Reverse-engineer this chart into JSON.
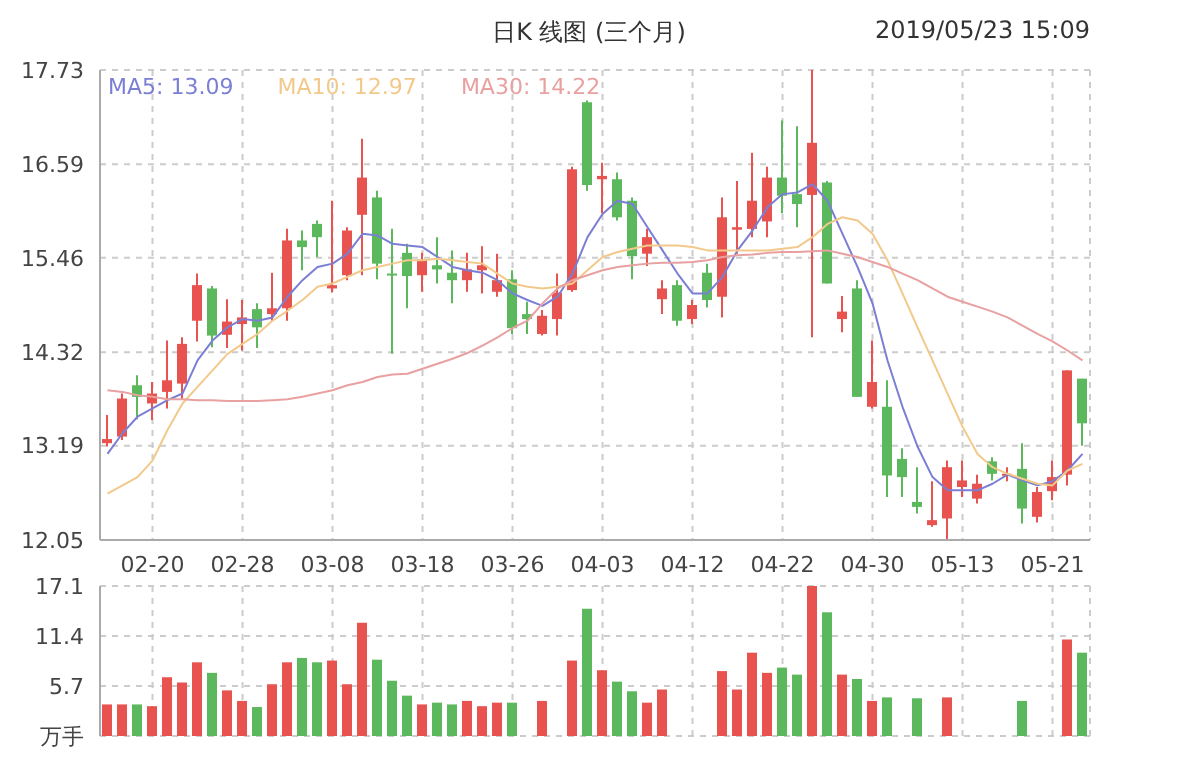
{
  "chart_data": [
    {
      "type": "candlestick",
      "title": "日K 线图 (三个月)",
      "annotations": [
        "2019/05/23 15:09"
      ],
      "categories": [
        null,
        null,
        null,
        "02-20",
        null,
        null,
        null,
        null,
        null,
        "02-28",
        null,
        null,
        null,
        null,
        null,
        "03-08",
        null,
        null,
        null,
        null,
        null,
        "03-18",
        null,
        null,
        null,
        null,
        null,
        "03-26",
        null,
        null,
        null,
        null,
        null,
        "04-03",
        null,
        null,
        null,
        null,
        null,
        "04-12",
        null,
        null,
        null,
        null,
        null,
        "04-22",
        null,
        null,
        null,
        null,
        null,
        "04-30",
        null,
        null,
        null,
        null,
        null,
        "05-13",
        null,
        null,
        null,
        null,
        null,
        "05-21",
        null,
        null
      ],
      "ohlc": [
        [
          13.22,
          13.56,
          13.18,
          13.27
        ],
        [
          13.3,
          13.82,
          13.26,
          13.76
        ],
        [
          13.92,
          14.04,
          13.51,
          13.78
        ],
        [
          13.7,
          13.96,
          13.5,
          13.82
        ],
        [
          13.84,
          14.46,
          13.64,
          13.98
        ],
        [
          13.94,
          14.5,
          13.75,
          14.42
        ],
        [
          14.7,
          15.27,
          14.45,
          15.13
        ],
        [
          15.09,
          15.12,
          14.38,
          14.52
        ],
        [
          14.53,
          14.96,
          14.37,
          14.69
        ],
        [
          14.66,
          14.95,
          14.34,
          14.74
        ],
        [
          14.84,
          14.91,
          14.37,
          14.62
        ],
        [
          14.78,
          15.28,
          14.7,
          14.85
        ],
        [
          14.85,
          15.81,
          14.7,
          15.67
        ],
        [
          15.67,
          15.79,
          15.31,
          15.59
        ],
        [
          15.87,
          15.91,
          15.47,
          15.71
        ],
        [
          15.09,
          16.15,
          15.04,
          15.13
        ],
        [
          15.25,
          15.83,
          15.19,
          15.79
        ],
        [
          15.98,
          16.9,
          15.25,
          16.43
        ],
        [
          16.19,
          16.27,
          15.2,
          15.39
        ],
        [
          15.27,
          15.81,
          14.3,
          15.25
        ],
        [
          15.52,
          15.63,
          14.85,
          15.24
        ],
        [
          15.25,
          15.52,
          15.05,
          15.44
        ],
        [
          15.37,
          15.71,
          15.15,
          15.32
        ],
        [
          15.28,
          15.55,
          14.91,
          15.19
        ],
        [
          15.19,
          15.52,
          15.05,
          15.32
        ],
        [
          15.31,
          15.6,
          15.03,
          15.37
        ],
        [
          15.05,
          15.51,
          14.99,
          15.19
        ],
        [
          15.2,
          15.31,
          14.54,
          14.61
        ],
        [
          14.78,
          14.93,
          14.54,
          14.72
        ],
        [
          14.54,
          14.83,
          14.52,
          14.76
        ],
        [
          14.72,
          15.27,
          14.52,
          15.04
        ],
        [
          15.07,
          16.56,
          15.05,
          16.53
        ],
        [
          17.34,
          17.36,
          16.27,
          16.34
        ],
        [
          16.41,
          16.61,
          16.0,
          16.45
        ],
        [
          16.41,
          16.49,
          15.91,
          15.95
        ],
        [
          16.15,
          16.19,
          15.2,
          15.48
        ],
        [
          15.51,
          15.81,
          15.36,
          15.71
        ],
        [
          14.96,
          15.19,
          14.78,
          15.09
        ],
        [
          15.13,
          15.19,
          14.64,
          14.7
        ],
        [
          14.72,
          14.95,
          14.66,
          14.89
        ],
        [
          15.28,
          15.39,
          14.86,
          14.95
        ],
        [
          14.99,
          16.19,
          14.74,
          15.95
        ],
        [
          15.8,
          16.39,
          15.51,
          15.83
        ],
        [
          15.81,
          16.73,
          15.71,
          16.15
        ],
        [
          15.9,
          16.56,
          15.71,
          16.43
        ],
        [
          16.43,
          17.12,
          16.0,
          16.21
        ],
        [
          16.23,
          17.05,
          15.83,
          16.11
        ],
        [
          16.22,
          17.73,
          14.5,
          16.85
        ],
        [
          16.37,
          16.39,
          15.15,
          15.15
        ],
        [
          14.72,
          15.0,
          14.56,
          14.81
        ],
        [
          15.09,
          15.19,
          13.78,
          13.78
        ],
        [
          13.66,
          14.46,
          13.64,
          13.96
        ],
        [
          13.66,
          13.98,
          12.57,
          12.83
        ],
        [
          13.03,
          13.16,
          12.57,
          12.81
        ],
        [
          12.51,
          12.93,
          12.37,
          12.45
        ],
        [
          12.23,
          12.76,
          12.21,
          12.29
        ],
        [
          12.31,
          13.01,
          12.05,
          12.93
        ],
        [
          12.69,
          13.01,
          12.57,
          12.77
        ],
        [
          12.55,
          12.84,
          12.49,
          12.73
        ],
        [
          13.0,
          13.05,
          12.77,
          12.85
        ],
        [
          12.83,
          12.93,
          12.76,
          12.85
        ],
        [
          12.91,
          13.22,
          12.25,
          12.43
        ],
        [
          12.33,
          12.69,
          12.26,
          12.63
        ],
        [
          12.64,
          13.01,
          12.53,
          12.81
        ],
        [
          12.84,
          14.1,
          12.71,
          14.1
        ],
        [
          14.0,
          14.0,
          13.19,
          13.46
        ]
      ],
      "colors": [
        "#e8534f",
        "#e8534f",
        "#5cb85c",
        "#e8534f",
        "#e8534f",
        "#e8534f",
        "#e8534f",
        "#5cb85c",
        "#e8534f",
        "#e8534f",
        "#5cb85c",
        "#e8534f",
        "#e8534f",
        "#5cb85c",
        "#5cb85c",
        "#e8534f",
        "#e8534f",
        "#e8534f",
        "#5cb85c",
        "#5cb85c",
        "#5cb85c",
        "#e8534f",
        "#5cb85c",
        "#5cb85c",
        "#e8534f",
        "#e8534f",
        "#e8534f",
        "#5cb85c",
        "#5cb85c",
        "#e8534f",
        "#e8534f",
        "#e8534f",
        "#5cb85c",
        "#e8534f",
        "#5cb85c",
        "#5cb85c",
        "#e8534f",
        "#e8534f",
        "#5cb85c",
        "#e8534f",
        "#5cb85c",
        "#e8534f",
        "#e8534f",
        "#e8534f",
        "#e8534f",
        "#5cb85c",
        "#5cb85c",
        "#e8534f",
        "#5cb85c",
        "#e8534f",
        "#5cb85c",
        "#e8534f",
        "#5cb85c",
        "#5cb85c",
        "#5cb85c",
        "#e8534f",
        "#e8534f",
        "#e8534f",
        "#e8534f",
        "#5cb85c",
        "#e8534f",
        "#5cb85c",
        "#e8534f",
        "#e8534f",
        "#e8534f",
        "#5cb85c"
      ],
      "series": [
        {
          "type": "line",
          "name": "MA5: 13.09",
          "color": "#7b7fd4",
          "values": [
            13.09,
            13.34,
            13.54,
            13.64,
            13.74,
            13.82,
            14.22,
            14.46,
            14.62,
            14.72,
            14.7,
            14.74,
            14.99,
            15.19,
            15.35,
            15.39,
            15.51,
            15.75,
            15.73,
            15.63,
            15.61,
            15.59,
            15.47,
            15.35,
            15.31,
            15.28,
            15.19,
            15.03,
            14.95,
            14.88,
            14.99,
            15.27,
            15.71,
            15.99,
            16.15,
            16.11,
            15.83,
            15.55,
            15.27,
            15.03,
            15.03,
            15.23,
            15.55,
            15.79,
            16.07,
            16.23,
            16.25,
            16.35,
            16.15,
            15.75,
            15.35,
            14.91,
            14.22,
            13.66,
            13.18,
            12.81,
            12.65,
            12.65,
            12.65,
            12.73,
            12.84,
            12.77,
            12.71,
            12.76,
            12.89,
            13.09
          ]
        },
        {
          "type": "line",
          "name": "MA10: 12.97",
          "color": "#f2c98a",
          "values": [
            12.61,
            12.71,
            12.81,
            13.01,
            13.38,
            13.7,
            13.9,
            14.1,
            14.3,
            14.42,
            14.54,
            14.7,
            14.82,
            14.95,
            15.11,
            15.15,
            15.23,
            15.31,
            15.35,
            15.39,
            15.43,
            15.43,
            15.45,
            15.43,
            15.41,
            15.39,
            15.27,
            15.15,
            15.11,
            15.09,
            15.11,
            15.15,
            15.31,
            15.47,
            15.53,
            15.57,
            15.61,
            15.61,
            15.61,
            15.59,
            15.55,
            15.55,
            15.55,
            15.55,
            15.55,
            15.57,
            15.59,
            15.71,
            15.87,
            15.95,
            15.91,
            15.75,
            15.43,
            15.03,
            14.62,
            14.22,
            13.82,
            13.42,
            13.09,
            12.93,
            12.85,
            12.79,
            12.73,
            12.71,
            12.89,
            12.97
          ]
        },
        {
          "type": "line",
          "name": "MA30: 14.22",
          "color": "#e8a0a0",
          "values": [
            13.86,
            13.84,
            13.8,
            13.78,
            13.75,
            13.75,
            13.74,
            13.74,
            13.73,
            13.73,
            13.73,
            13.74,
            13.75,
            13.78,
            13.82,
            13.86,
            13.92,
            13.96,
            14.02,
            14.05,
            14.06,
            14.12,
            14.18,
            14.24,
            14.31,
            14.4,
            14.5,
            14.61,
            14.7,
            14.91,
            15.09,
            15.19,
            15.25,
            15.31,
            15.35,
            15.37,
            15.39,
            15.4,
            15.4,
            15.41,
            15.43,
            15.47,
            15.49,
            15.5,
            15.52,
            15.53,
            15.53,
            15.54,
            15.55,
            15.51,
            15.47,
            15.41,
            15.35,
            15.27,
            15.19,
            15.09,
            14.99,
            14.93,
            14.87,
            14.81,
            14.74,
            14.64,
            14.54,
            14.45,
            14.34,
            14.22
          ]
        }
      ],
      "ylim": [
        12.05,
        17.73
      ],
      "yticks": [
        12.05,
        13.19,
        14.32,
        15.46,
        16.59,
        17.73
      ],
      "grid": true,
      "legend": "top left"
    },
    {
      "type": "bar",
      "categories": [
        null,
        null,
        null,
        null,
        null,
        null,
        null,
        null,
        null,
        null,
        null,
        null,
        null,
        null,
        null,
        null,
        null,
        null,
        null,
        null,
        null,
        null,
        null,
        null,
        null,
        null,
        null,
        null,
        null,
        null,
        null,
        null,
        null,
        null,
        null,
        null,
        null,
        null,
        null,
        null,
        null,
        null,
        null,
        null,
        null,
        null,
        null,
        null,
        null,
        null,
        null,
        null,
        null,
        null,
        null,
        null,
        null,
        null,
        null,
        null,
        null,
        null,
        null,
        null,
        null,
        null
      ],
      "values": [
        3.6,
        3.6,
        3.6,
        3.4,
        6.7,
        6.1,
        8.4,
        7.2,
        5.2,
        4.0,
        3.3,
        5.9,
        8.4,
        8.9,
        8.4,
        8.6,
        5.9,
        12.9,
        8.7,
        6.3,
        4.6,
        3.6,
        3.8,
        3.6,
        4.0,
        3.4,
        3.8,
        3.8,
        null,
        4.0,
        null,
        8.6,
        14.5,
        7.5,
        6.2,
        5.1,
        3.8,
        5.3,
        null,
        null,
        null,
        7.4,
        5.3,
        9.5,
        7.2,
        7.8,
        7.0,
        17.1,
        14.1,
        7.0,
        6.5,
        4.0,
        4.4,
        null,
        4.3,
        null,
        4.4,
        null,
        null,
        null,
        null,
        4.0,
        null,
        null,
        11.0,
        9.5
      ],
      "colors": [
        "#e8534f",
        "#e8534f",
        "#5cb85c",
        "#e8534f",
        "#e8534f",
        "#e8534f",
        "#e8534f",
        "#5cb85c",
        "#e8534f",
        "#e8534f",
        "#5cb85c",
        "#e8534f",
        "#e8534f",
        "#5cb85c",
        "#5cb85c",
        "#e8534f",
        "#e8534f",
        "#e8534f",
        "#5cb85c",
        "#5cb85c",
        "#5cb85c",
        "#e8534f",
        "#5cb85c",
        "#5cb85c",
        "#e8534f",
        "#e8534f",
        "#e8534f",
        "#5cb85c",
        "#5cb85c",
        "#e8534f",
        "#e8534f",
        "#e8534f",
        "#5cb85c",
        "#e8534f",
        "#5cb85c",
        "#5cb85c",
        "#e8534f",
        "#e8534f",
        "#5cb85c",
        "#e8534f",
        "#5cb85c",
        "#e8534f",
        "#e8534f",
        "#e8534f",
        "#e8534f",
        "#5cb85c",
        "#5cb85c",
        "#e8534f",
        "#5cb85c",
        "#e8534f",
        "#5cb85c",
        "#e8534f",
        "#5cb85c",
        "#5cb85c",
        "#5cb85c",
        "#e8534f",
        "#e8534f",
        "#e8534f",
        "#e8534f",
        "#5cb85c",
        "#e8534f",
        "#5cb85c",
        "#e8534f",
        "#e8534f",
        "#e8534f",
        "#5cb85c"
      ],
      "ylim": [
        0,
        17.1
      ],
      "yticks": [
        {
          "value": 0,
          "label": "万手"
        },
        5.7,
        11.4,
        17.1
      ],
      "grid": true,
      "tick_labels": "y"
    }
  ]
}
